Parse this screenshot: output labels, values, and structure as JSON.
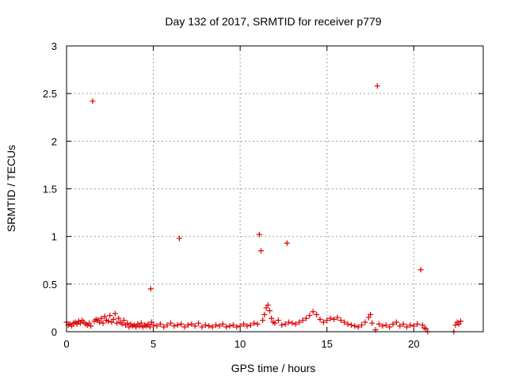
{
  "chart_data": {
    "type": "scatter",
    "title": "Day 132 of 2017, SRMTID for receiver p779",
    "xlabel": "GPS time / hours",
    "ylabel": "SRMTID / TECUs",
    "xlim": [
      0,
      24
    ],
    "ylim": [
      0,
      3
    ],
    "x_ticks": [
      0,
      5,
      10,
      15,
      20
    ],
    "x_tick_labels": [
      "0",
      "5",
      "10",
      "15",
      "20"
    ],
    "y_ticks": [
      0,
      0.5,
      1,
      1.5,
      2,
      2.5,
      3
    ],
    "y_tick_labels": [
      "0",
      "0.5",
      "1",
      "1.5",
      "2",
      "2.5",
      "3"
    ],
    "grid": true,
    "marker": "+",
    "colors": {
      "series": "#dd0000",
      "grid": "#a0a0a0",
      "axis": "#000000"
    },
    "series": [
      {
        "name": "SRMTID",
        "points": [
          [
            0.0,
            0.1
          ],
          [
            0.1,
            0.07
          ],
          [
            0.2,
            0.08
          ],
          [
            0.3,
            0.06
          ],
          [
            0.4,
            0.09
          ],
          [
            0.5,
            0.1
          ],
          [
            0.6,
            0.08
          ],
          [
            0.7,
            0.11
          ],
          [
            0.8,
            0.09
          ],
          [
            0.9,
            0.12
          ],
          [
            1.0,
            0.1
          ],
          [
            1.1,
            0.08
          ],
          [
            1.2,
            0.07
          ],
          [
            1.3,
            0.09
          ],
          [
            1.4,
            0.06
          ],
          [
            1.5,
            2.42
          ],
          [
            1.6,
            0.11
          ],
          [
            1.7,
            0.13
          ],
          [
            1.8,
            0.12
          ],
          [
            1.9,
            0.1
          ],
          [
            2.0,
            0.14
          ],
          [
            2.1,
            0.09
          ],
          [
            2.2,
            0.16
          ],
          [
            2.3,
            0.12
          ],
          [
            2.4,
            0.11
          ],
          [
            2.5,
            0.17
          ],
          [
            2.6,
            0.1
          ],
          [
            2.7,
            0.13
          ],
          [
            2.8,
            0.19
          ],
          [
            2.9,
            0.09
          ],
          [
            3.0,
            0.14
          ],
          [
            3.1,
            0.1
          ],
          [
            3.2,
            0.08
          ],
          [
            3.3,
            0.12
          ],
          [
            3.4,
            0.07
          ],
          [
            3.5,
            0.09
          ],
          [
            3.6,
            0.05
          ],
          [
            3.7,
            0.08
          ],
          [
            3.8,
            0.06
          ],
          [
            3.9,
            0.07
          ],
          [
            4.0,
            0.05
          ],
          [
            4.1,
            0.08
          ],
          [
            4.2,
            0.06
          ],
          [
            4.3,
            0.09
          ],
          [
            4.4,
            0.05
          ],
          [
            4.5,
            0.07
          ],
          [
            4.6,
            0.06
          ],
          [
            4.7,
            0.08
          ],
          [
            4.8,
            0.05
          ],
          [
            4.85,
            0.45
          ],
          [
            4.9,
            0.1
          ],
          [
            5.0,
            0.07
          ],
          [
            5.2,
            0.06
          ],
          [
            5.4,
            0.08
          ],
          [
            5.6,
            0.05
          ],
          [
            5.8,
            0.07
          ],
          [
            6.0,
            0.09
          ],
          [
            6.2,
            0.06
          ],
          [
            6.4,
            0.07
          ],
          [
            6.5,
            0.98
          ],
          [
            6.6,
            0.08
          ],
          [
            6.8,
            0.05
          ],
          [
            7.0,
            0.07
          ],
          [
            7.2,
            0.08
          ],
          [
            7.4,
            0.06
          ],
          [
            7.6,
            0.09
          ],
          [
            7.8,
            0.05
          ],
          [
            8.0,
            0.07
          ],
          [
            8.2,
            0.06
          ],
          [
            8.4,
            0.05
          ],
          [
            8.6,
            0.07
          ],
          [
            8.8,
            0.06
          ],
          [
            9.0,
            0.08
          ],
          [
            9.2,
            0.05
          ],
          [
            9.4,
            0.06
          ],
          [
            9.6,
            0.07
          ],
          [
            9.8,
            0.05
          ],
          [
            10.0,
            0.06
          ],
          [
            10.2,
            0.08
          ],
          [
            10.4,
            0.06
          ],
          [
            10.6,
            0.07
          ],
          [
            10.8,
            0.09
          ],
          [
            11.0,
            0.08
          ],
          [
            11.1,
            1.02
          ],
          [
            11.2,
            0.85
          ],
          [
            11.3,
            0.12
          ],
          [
            11.4,
            0.18
          ],
          [
            11.5,
            0.25
          ],
          [
            11.6,
            0.28
          ],
          [
            11.7,
            0.22
          ],
          [
            11.8,
            0.14
          ],
          [
            11.9,
            0.1
          ],
          [
            12.0,
            0.09
          ],
          [
            12.2,
            0.12
          ],
          [
            12.4,
            0.07
          ],
          [
            12.6,
            0.08
          ],
          [
            12.7,
            0.93
          ],
          [
            12.8,
            0.1
          ],
          [
            13.0,
            0.09
          ],
          [
            13.2,
            0.08
          ],
          [
            13.4,
            0.1
          ],
          [
            13.6,
            0.12
          ],
          [
            13.8,
            0.14
          ],
          [
            14.0,
            0.17
          ],
          [
            14.2,
            0.21
          ],
          [
            14.4,
            0.18
          ],
          [
            14.6,
            0.13
          ],
          [
            14.8,
            0.1
          ],
          [
            15.0,
            0.12
          ],
          [
            15.2,
            0.14
          ],
          [
            15.4,
            0.13
          ],
          [
            15.6,
            0.15
          ],
          [
            15.8,
            0.12
          ],
          [
            16.0,
            0.1
          ],
          [
            16.2,
            0.08
          ],
          [
            16.4,
            0.07
          ],
          [
            16.6,
            0.06
          ],
          [
            16.8,
            0.05
          ],
          [
            17.0,
            0.07
          ],
          [
            17.2,
            0.1
          ],
          [
            17.4,
            0.15
          ],
          [
            17.5,
            0.18
          ],
          [
            17.6,
            0.09
          ],
          [
            17.8,
            0.02
          ],
          [
            17.9,
            2.58
          ],
          [
            18.0,
            0.08
          ],
          [
            18.2,
            0.06
          ],
          [
            18.4,
            0.07
          ],
          [
            18.6,
            0.05
          ],
          [
            18.8,
            0.08
          ],
          [
            19.0,
            0.1
          ],
          [
            19.2,
            0.06
          ],
          [
            19.4,
            0.08
          ],
          [
            19.6,
            0.05
          ],
          [
            19.8,
            0.07
          ],
          [
            20.0,
            0.06
          ],
          [
            20.2,
            0.08
          ],
          [
            20.4,
            0.65
          ],
          [
            20.5,
            0.07
          ],
          [
            20.6,
            0.04
          ],
          [
            20.7,
            0.03
          ],
          [
            20.8,
            0.0
          ],
          [
            22.3,
            0.0
          ],
          [
            22.4,
            0.07
          ],
          [
            22.5,
            0.1
          ],
          [
            22.6,
            0.08
          ],
          [
            22.7,
            0.11
          ]
        ]
      }
    ]
  }
}
